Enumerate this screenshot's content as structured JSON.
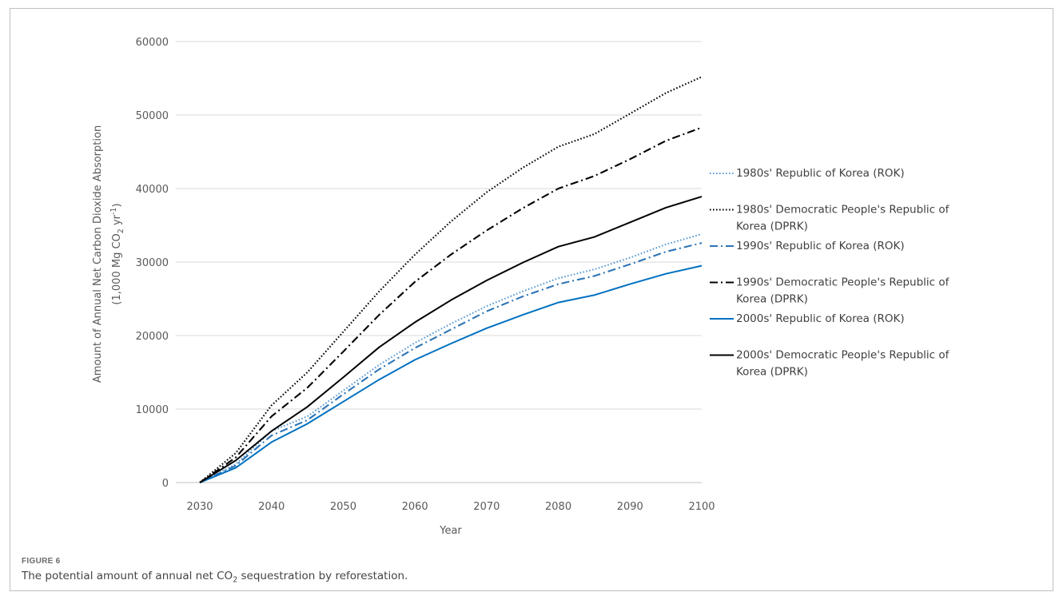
{
  "figure": {
    "label": "FIGURE 6",
    "caption_before": "The potential amount of annual net CO",
    "caption_sub": "2",
    "caption_after": " sequestration by reforestation."
  },
  "chart_data": {
    "type": "line",
    "xlabel": "Year",
    "ylabel_line1": "Amount of Annual Net Carbon Dioxide Absorption",
    "ylabel_line2_parts": [
      "(1,000 Mg CO",
      "2",
      " yr",
      "-1",
      ")"
    ],
    "xlim": [
      2030,
      2100
    ],
    "ylim": [
      0,
      60000
    ],
    "x_ticks": [
      2030,
      2040,
      2050,
      2060,
      2070,
      2080,
      2090,
      2100
    ],
    "y_ticks": [
      0,
      10000,
      20000,
      30000,
      40000,
      50000,
      60000
    ],
    "grid": "horizontal",
    "legend_position": "right",
    "x": [
      2030,
      2035,
      2040,
      2045,
      2050,
      2055,
      2060,
      2065,
      2070,
      2075,
      2080,
      2085,
      2090,
      2095,
      2100
    ],
    "series": [
      {
        "name": "1980s' Republic of Korea (ROK)",
        "legend_lines": [
          "1980s' Republic of Korea (ROK)"
        ],
        "color": "#5b9bd5",
        "dash": "dotted",
        "values": [
          0,
          2500,
          7000,
          9000,
          12500,
          16000,
          19000,
          21600,
          24000,
          26000,
          27800,
          29000,
          30600,
          32400,
          33800
        ]
      },
      {
        "name": "1980s' Democratic People's Republic of Korea (DPRK)",
        "legend_lines": [
          "1980s' Democratic People's Republic of",
          "Korea (DPRK)"
        ],
        "color": "#000000",
        "dash": "dotted",
        "values": [
          0,
          4000,
          10500,
          15000,
          20500,
          26000,
          31000,
          35500,
          39500,
          42800,
          45700,
          47400,
          50200,
          53000,
          55200
        ]
      },
      {
        "name": "1990s' Republic of Korea (ROK)",
        "legend_lines": [
          "1990s' Republic of Korea (ROK)"
        ],
        "color": "#2e75b6",
        "dash": "dashdot",
        "values": [
          0,
          2300,
          6400,
          8500,
          12000,
          15400,
          18300,
          20800,
          23300,
          25300,
          27000,
          28100,
          29700,
          31400,
          32600
        ]
      },
      {
        "name": "1990s' Democratic People's Republic of Korea (DPRK)",
        "legend_lines": [
          "1990s' Democratic People's Republic of",
          "Korea (DPRK)"
        ],
        "color": "#000000",
        "dash": "dashdot",
        "values": [
          0,
          3400,
          9000,
          12900,
          17800,
          22800,
          27300,
          31000,
          34300,
          37300,
          40000,
          41700,
          44000,
          46500,
          48300
        ]
      },
      {
        "name": "2000s' Republic of Korea (ROK)",
        "legend_lines": [
          "2000s' Republic of Korea (ROK)"
        ],
        "color": "#0070c0",
        "dash": "solid",
        "values": [
          0,
          2000,
          5500,
          8000,
          11000,
          14000,
          16700,
          18900,
          21000,
          22800,
          24500,
          25500,
          27000,
          28400,
          29500
        ]
      },
      {
        "name": "2000s' Democratic People's Republic of Korea (DPRK)",
        "legend_lines": [
          "2000s' Democratic People's Republic of",
          "Korea (DPRK)"
        ],
        "color": "#000000",
        "dash": "solid",
        "values": [
          0,
          3000,
          7000,
          10300,
          14300,
          18400,
          21800,
          24800,
          27500,
          29900,
          32100,
          33400,
          35400,
          37400,
          38900
        ]
      }
    ]
  }
}
